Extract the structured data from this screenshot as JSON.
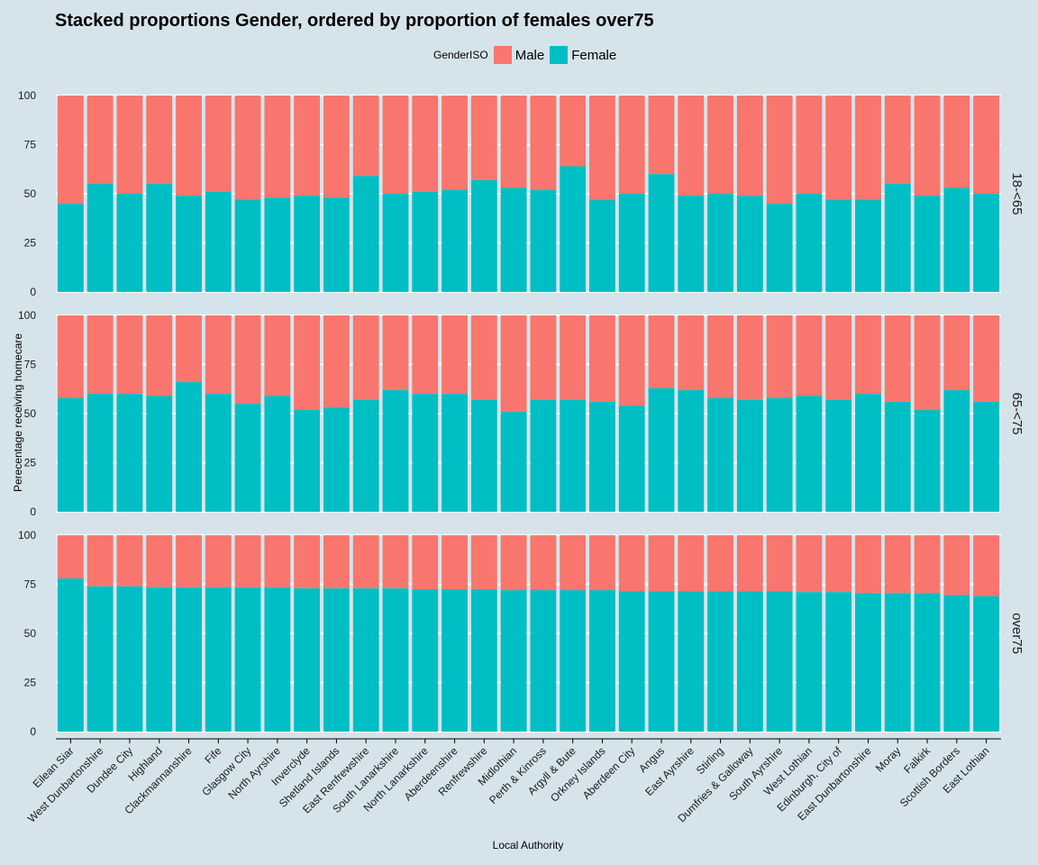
{
  "colors": {
    "background": "#d5e4eb",
    "male": "#f8766d",
    "female": "#00bfc4",
    "grid": "#ffffff",
    "axis": "#000000"
  },
  "chart_data": {
    "type": "bar",
    "stacked": true,
    "title": "Stacked proportions Gender, ordered by proportion of females over75",
    "xlabel": "Local Authority",
    "ylabel": "Perecentage receiving homecare",
    "ylim": [
      0,
      100
    ],
    "y_ticks": [
      0,
      25,
      50,
      75,
      100
    ],
    "grid": true,
    "legend": {
      "title": "GenderISO",
      "position": "top",
      "entries": [
        "Male",
        "Female"
      ]
    },
    "categories": [
      "Eilean Siar",
      "West Dunbartonshire",
      "Dundee City",
      "Highland",
      "Clackmannanshire",
      "Fife",
      "Glasgow City",
      "North Ayrshire",
      "Inverclyde",
      "Shetland Islands",
      "East Renfrewshire",
      "South Lanarkshire",
      "North Lanarkshire",
      "Aberdeenshire",
      "Renfrewshire",
      "Midlothian",
      "Perth & Kinross",
      "Argyll & Bute",
      "Orkney Islands",
      "Aberdeen City",
      "Angus",
      "East Ayrshire",
      "Stirling",
      "Dumfries & Galloway",
      "South Ayrshire",
      "West Lothian",
      "Edinburgh, City of",
      "East Dunbartonshire",
      "Moray",
      "Falkirk",
      "Scottish Borders",
      "East Lothian"
    ],
    "panels": [
      {
        "label": "18-<65",
        "female": [
          45,
          55,
          50,
          55,
          49,
          51,
          47,
          48,
          49,
          48,
          59,
          50,
          51,
          52,
          57,
          53,
          52,
          64,
          47,
          50,
          60,
          49,
          50,
          49,
          45,
          50,
          47,
          47,
          55,
          49,
          53,
          50
        ]
      },
      {
        "label": "65-<75",
        "female": [
          58,
          60,
          60,
          59,
          66,
          60,
          55,
          59,
          52,
          53,
          57,
          62,
          60,
          60,
          57,
          51,
          57,
          57,
          56,
          54,
          63,
          62,
          58,
          57,
          58,
          59,
          57,
          60,
          56,
          52,
          62,
          56
        ]
      },
      {
        "label": "over75",
        "female": [
          78,
          74,
          74,
          73.5,
          73.5,
          73.5,
          73.5,
          73.5,
          73,
          73,
          73,
          73,
          72.5,
          72.5,
          72.5,
          72,
          72,
          72,
          72,
          71.5,
          71.5,
          71.5,
          71.5,
          71.5,
          71.5,
          71,
          71,
          70.5,
          70.5,
          70.5,
          69.5,
          69
        ]
      }
    ]
  }
}
